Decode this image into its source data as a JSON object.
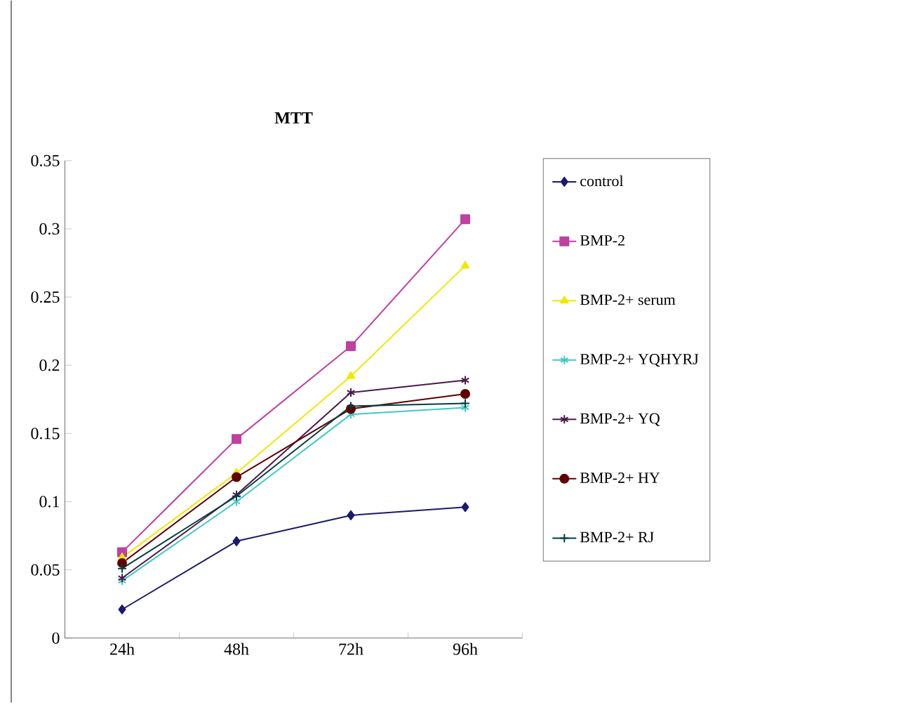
{
  "chart_data": {
    "type": "line",
    "title": "MTT",
    "categories": [
      "24h",
      "48h",
      "72h",
      "96h"
    ],
    "series": [
      {
        "name": "control",
        "color": "#1a1a6e",
        "marker": "diamond",
        "values": [
          0.021,
          0.071,
          0.09,
          0.096
        ]
      },
      {
        "name": "BMP-2",
        "color": "#c040a0",
        "marker": "square",
        "values": [
          0.063,
          0.146,
          0.214,
          0.307
        ]
      },
      {
        "name": "BMP-2+  serum",
        "color": "#f0e800",
        "marker": "triangle",
        "values": [
          0.059,
          0.121,
          0.192,
          0.273
        ]
      },
      {
        "name": "BMP-2+  YQHYRJ",
        "color": "#40c8c8",
        "marker": "cross",
        "values": [
          0.042,
          0.1,
          0.164,
          0.169
        ]
      },
      {
        "name": "BMP-2+  YQ",
        "color": "#4a1a4a",
        "marker": "cross",
        "values": [
          0.044,
          0.105,
          0.18,
          0.189
        ]
      },
      {
        "name": "BMP-2+  HY",
        "color": "#600000",
        "marker": "circle",
        "values": [
          0.055,
          0.118,
          0.168,
          0.179
        ]
      },
      {
        "name": "BMP-2+  RJ",
        "color": "#004040",
        "marker": "plus",
        "values": [
          0.051,
          0.104,
          0.17,
          0.172
        ]
      }
    ],
    "ylim": [
      0,
      0.35
    ],
    "yticks": [
      0,
      0.05,
      0.1,
      0.15,
      0.2,
      0.25,
      0.3,
      0.35
    ],
    "legend": "right",
    "line_style": "solid"
  }
}
